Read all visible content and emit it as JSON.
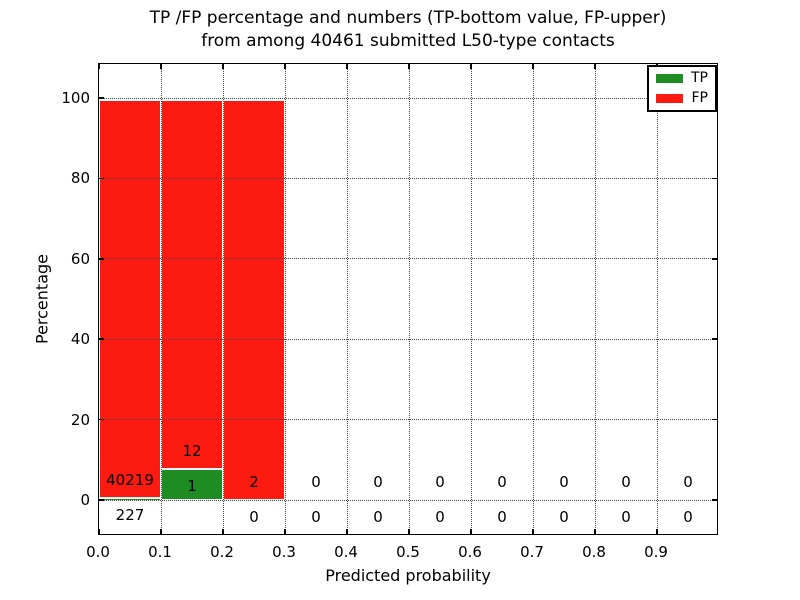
{
  "chart_data": {
    "type": "bar",
    "stacked": true,
    "title_line1": "TP /FP percentage and numbers (TP-bottom value, FP-upper)",
    "title_line2": "from among 40461 submitted L50-type contacts",
    "xlabel": "Predicted probability",
    "ylabel": "Percentage",
    "total_submitted": 40461,
    "contact_type": "L50",
    "xticks": [
      "0.0",
      "0.1",
      "0.2",
      "0.3",
      "0.4",
      "0.5",
      "0.6",
      "0.7",
      "0.8",
      "0.9"
    ],
    "yticks": [
      "0",
      "20",
      "40",
      "60",
      "80",
      "100"
    ],
    "ytick_values": [
      0,
      20,
      40,
      60,
      80,
      100
    ],
    "xlim": [
      0.0,
      1.0
    ],
    "ylim": [
      -8.5,
      109
    ],
    "grid": "dotted",
    "bin_width": 0.1,
    "categories": [
      "0.0-0.1",
      "0.1-0.2",
      "0.2-0.3",
      "0.3-0.4",
      "0.4-0.5",
      "0.5-0.6",
      "0.6-0.7",
      "0.7-0.8",
      "0.8-0.9",
      "0.9-1.0"
    ],
    "series": [
      {
        "name": "TP",
        "color": "#1e8c23",
        "counts": [
          227,
          1,
          0,
          0,
          0,
          0,
          0,
          0,
          0,
          0
        ],
        "pct": [
          0.56,
          7.69,
          0,
          0,
          0,
          0,
          0,
          0,
          0,
          0
        ]
      },
      {
        "name": "FP",
        "color": "#fb1b10",
        "counts": [
          40219,
          12,
          2,
          0,
          0,
          0,
          0,
          0,
          0,
          0
        ],
        "pct": [
          99.44,
          92.31,
          100,
          0,
          0,
          0,
          0,
          0,
          0,
          0
        ]
      }
    ],
    "bars_total_pct": [
      100,
      100,
      100,
      0,
      0,
      0,
      0,
      0,
      0,
      0
    ],
    "legend": {
      "position": "upper right",
      "entries": [
        {
          "label": "TP"
        },
        {
          "label": "FP"
        }
      ]
    }
  }
}
